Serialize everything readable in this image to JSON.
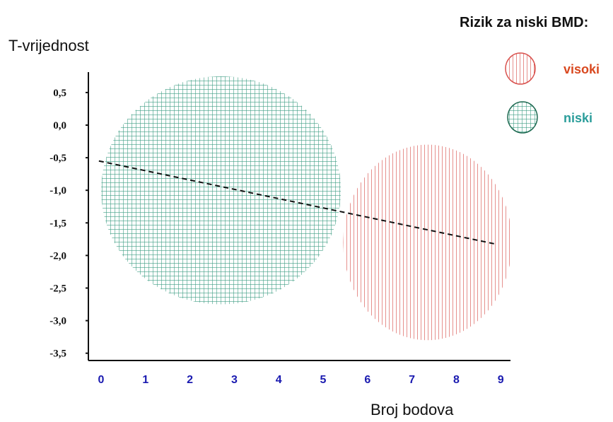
{
  "chart_data": {
    "type": "scatter",
    "ylabel": "T-vrijednost",
    "xlabel": "Broj bodova",
    "x_ticks": [
      "0",
      "1",
      "2",
      "3",
      "4",
      "5",
      "6",
      "7",
      "8",
      "9"
    ],
    "y_ticks": [
      "0,5",
      "0,0",
      "-0,5",
      "-1,0",
      "-1,5",
      "-2,0",
      "-2,5",
      "-3,0",
      "-3,5"
    ],
    "y_tick_values": [
      0.5,
      0.0,
      -0.5,
      -1.0,
      -1.5,
      -2.0,
      -2.5,
      -3.0,
      -3.5
    ],
    "xlim": [
      0,
      9.5
    ],
    "ylim": [
      -3.65,
      0.85
    ],
    "grid": false,
    "legend": {
      "title": "Rizik za niski BMD:",
      "position": "top-right",
      "items": [
        {
          "label": "visoki",
          "color": "#d9534f",
          "hatch": "vertical"
        },
        {
          "label": "niski",
          "color": "#3f9e84",
          "hatch": "grid"
        }
      ]
    },
    "regions": [
      {
        "name": "niski",
        "cx": 2.7,
        "cy": -1.0,
        "rx": 2.7,
        "ry": 1.75,
        "color": "#3f9e84",
        "hatch": "grid"
      },
      {
        "name": "visoki",
        "cx": 7.35,
        "cy": -1.8,
        "rx": 1.9,
        "ry": 1.5,
        "color": "#d9534f",
        "hatch": "vertical"
      }
    ],
    "trend_line": {
      "style": "dashed",
      "color": "#111111",
      "points": [
        {
          "x": -0.05,
          "y": -0.55
        },
        {
          "x": 8.85,
          "y": -1.82
        }
      ]
    }
  }
}
